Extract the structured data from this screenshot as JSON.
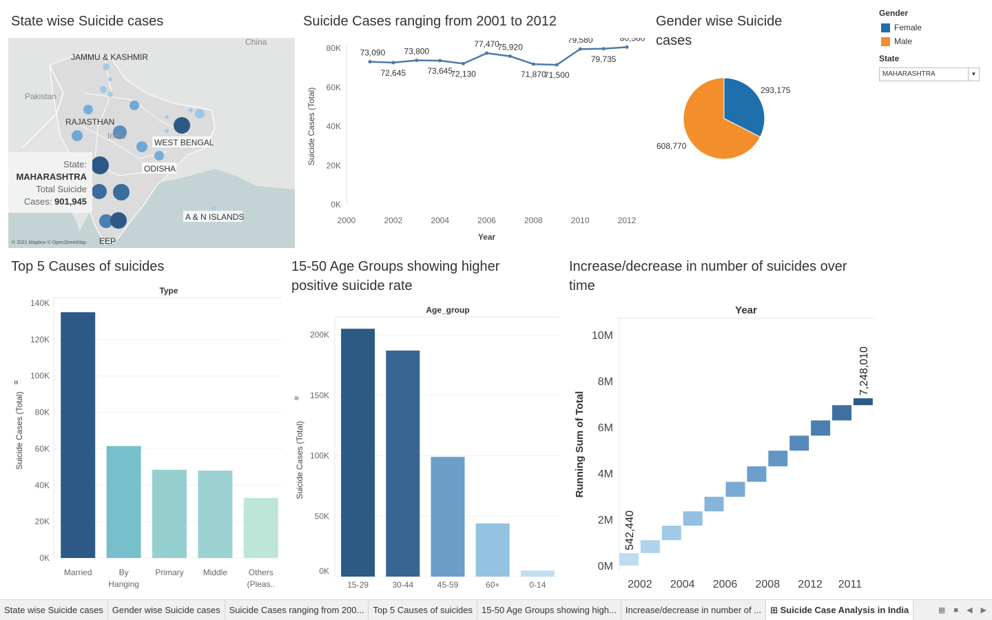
{
  "titles": {
    "map": "State wise Suicide cases",
    "line": "Suicide Cases ranging from 2001 to 2012",
    "pie_l1": "Gender wise Suicide",
    "pie_l2": "cases",
    "causes": "Top 5 Causes of suicides",
    "age_l1": "15-50 Age Groups showing higher",
    "age_l2": "positive suicide rate",
    "running_l1": "Increase/decrease in number of suicides over",
    "running_l2": "time"
  },
  "legend": {
    "gender_title": "Gender",
    "items": [
      {
        "label": "Female",
        "color": "#1f6fad"
      },
      {
        "label": "Male",
        "color": "#f28e2b"
      }
    ],
    "state_title": "State",
    "state_value": "MAHARASHTRA"
  },
  "map": {
    "labels": {
      "china": "China",
      "jk": "JAMMU & KASHMIR",
      "pakistan": "Pakistan",
      "rajasthan": "RAJASTHAN",
      "india": "India",
      "westbengal": "WEST BENGAL",
      "odisha": "ODISHA",
      "an": "A & N ISLANDS",
      "deep": "EEP",
      "attribution": "© 2021 Mapbox © OpenStreetMap"
    },
    "tooltip": {
      "state_label": "State:",
      "state_value": "MAHARASHTRA",
      "total_label_1": "Total Suicide",
      "total_label_2": "Cases:",
      "total_value": "901,945"
    }
  },
  "chart_data": [
    {
      "type": "line",
      "title": "Suicide Cases ranging from 2001 to 2012",
      "xlabel": "Year",
      "ylabel": "Suicide Cases (Total)",
      "x": [
        2001,
        2002,
        2003,
        2004,
        2005,
        2006,
        2007,
        2008,
        2009,
        2010,
        2011,
        2012
      ],
      "values": [
        73090,
        72645,
        73800,
        73645,
        72130,
        77470,
        75920,
        71870,
        71500,
        79580,
        79735,
        80560
      ],
      "data_labels": [
        "73,090",
        "72,645",
        "73,800",
        "73,645",
        "72,130",
        "77,470",
        "75,920",
        "71,870",
        "71,500",
        "79,580",
        "79,735",
        "80,560"
      ],
      "xticks": [
        "2000",
        "2002",
        "2004",
        "2006",
        "2008",
        "2010",
        "2012"
      ],
      "yticks": [
        "0K",
        "20K",
        "40K",
        "60K",
        "80K"
      ],
      "ylim": [
        0,
        80000
      ],
      "xlim": [
        2000,
        2012
      ],
      "color": "#4e79a7"
    },
    {
      "type": "pie",
      "title": "Gender wise Suicide cases",
      "categories": [
        "Female",
        "Male"
      ],
      "values": [
        293175,
        608770
      ],
      "data_labels": [
        "293,175",
        "608,770"
      ],
      "colors": [
        "#1f6fad",
        "#f28e2b"
      ]
    },
    {
      "type": "bar",
      "title": "Top 5 Causes of suicides",
      "column_header": "Type",
      "ylabel": "Suicide Cases (Total)",
      "categories": [
        "Married",
        "By Hanging",
        "Primary",
        "Middle",
        "Others (Pleas.."
      ],
      "category_lines": [
        [
          "Married"
        ],
        [
          "By",
          "Hanging"
        ],
        [
          "Primary"
        ],
        [
          "Middle"
        ],
        [
          "Others",
          "(Pleas.."
        ]
      ],
      "values": [
        135000,
        61500,
        48500,
        48000,
        33000
      ],
      "yticks": [
        "0K",
        "20K",
        "40K",
        "60K",
        "80K",
        "100K",
        "120K",
        "140K"
      ],
      "ylim": [
        0,
        140000
      ],
      "colors": [
        "#2d5986",
        "#78bfcc",
        "#96cfcf",
        "#9bd2d1",
        "#bde5d8"
      ]
    },
    {
      "type": "bar",
      "title": "15-50 Age Groups showing higher positive suicide rate",
      "column_header": "Age_group",
      "ylabel": "Suicide Cases (Total)",
      "categories": [
        "15-29",
        "30-44",
        "45-59",
        "60+",
        "0-14"
      ],
      "values": [
        205000,
        187000,
        99000,
        44000,
        5000
      ],
      "yticks": [
        "0K",
        "50K",
        "100K",
        "150K",
        "200K"
      ],
      "ylim": [
        0,
        200000
      ],
      "colors": [
        "#2b5a85",
        "#386591",
        "#6b9ec8",
        "#93c2e2",
        "#bfdff0"
      ]
    },
    {
      "type": "bar",
      "title": "Increase/decrease in number of suicides over time",
      "column_header": "Year",
      "ylabel": "Running Sum of Total",
      "x": [
        2001,
        2002,
        2003,
        2004,
        2005,
        2006,
        2007,
        2008,
        2009,
        2010,
        2012,
        2011
      ],
      "values": [
        542440,
        1100000,
        1730000,
        2350000,
        2980000,
        3630000,
        4300000,
        4980000,
        5630000,
        6290000,
        6950000,
        7248010
      ],
      "data_labels": [
        "542,440",
        "",
        "",
        "",
        "",
        "",
        "",
        "",
        "",
        "",
        "",
        "7,248,010"
      ],
      "xticks": [
        "2002",
        "2004",
        "2006",
        "2008",
        "2012",
        "2011"
      ],
      "yticks": [
        "0M",
        "2M",
        "4M",
        "6M",
        "8M",
        "10M"
      ],
      "ylim": [
        0,
        10000000
      ],
      "colors": [
        "#bcdcf0",
        "#aed3ed",
        "#a1cae7",
        "#92c0e1",
        "#85b5da",
        "#78aad3",
        "#6c9fcb",
        "#6296c4",
        "#5789bb",
        "#4c7eb1",
        "#3f70a4",
        "#2b5a87"
      ]
    }
  ],
  "tabs": [
    "State wise Suicide cases",
    "Gender wise Suicide cases",
    "Suicide Cases ranging from 200...",
    "Top 5 Causes of suicides",
    "15-50 Age Groups showing high...",
    "Increase/decrease in number of ...",
    "Suicide Case Analysis in India"
  ]
}
